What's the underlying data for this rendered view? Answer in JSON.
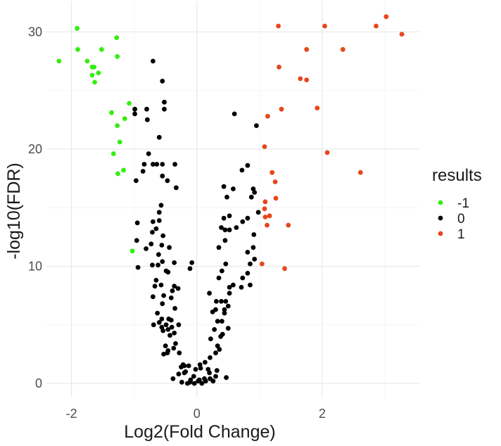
{
  "chart_data": {
    "type": "scatter",
    "xlabel": "Log2(Fold Change)",
    "ylabel": "-log10(FDR)",
    "xlim": [
      -2.4,
      3.55
    ],
    "ylim": [
      -1.2,
      32.6
    ],
    "x_ticks": [
      -2,
      0,
      2
    ],
    "y_ticks": [
      0,
      10,
      20,
      30
    ],
    "grid": true,
    "legend": {
      "title": "results",
      "position": "right",
      "entries": [
        {
          "label": "-1",
          "color": "#33ee11"
        },
        {
          "label": "0",
          "color": "#000000"
        },
        {
          "label": "1",
          "color": "#e8461c"
        }
      ]
    },
    "series": [
      {
        "name": "-1",
        "color": "#33ee11",
        "points": [
          [
            -1.91,
            30.3
          ],
          [
            -1.28,
            29.5
          ],
          [
            -1.9,
            28.5
          ],
          [
            -1.52,
            28.5
          ],
          [
            -1.27,
            27.9
          ],
          [
            -2.2,
            27.5
          ],
          [
            -1.75,
            27.5
          ],
          [
            -1.67,
            27.0
          ],
          [
            -1.64,
            27.0
          ],
          [
            -1.57,
            26.5
          ],
          [
            -1.67,
            26.3
          ],
          [
            -1.63,
            25.7
          ],
          [
            -1.08,
            23.9
          ],
          [
            -1.36,
            23.1
          ],
          [
            -1.15,
            22.6
          ],
          [
            -1.27,
            22.0
          ],
          [
            -1.23,
            20.6
          ],
          [
            -1.33,
            19.6
          ],
          [
            -1.17,
            18.2
          ],
          [
            -1.26,
            17.9
          ],
          [
            -1.03,
            11.3
          ]
        ]
      },
      {
        "name": "0",
        "color": "#000000",
        "points": [
          [
            -0.7,
            27.5
          ],
          [
            -0.55,
            25.8
          ],
          [
            -0.52,
            24.0
          ],
          [
            -0.52,
            23.4
          ],
          [
            -0.99,
            23.4
          ],
          [
            -0.99,
            23.0
          ],
          [
            -0.8,
            23.4
          ],
          [
            -0.79,
            22.5
          ],
          [
            -0.6,
            21.0
          ],
          [
            -0.77,
            19.6
          ],
          [
            -0.84,
            18.7
          ],
          [
            -0.7,
            18.7
          ],
          [
            -0.64,
            18.7
          ],
          [
            -0.55,
            18.7
          ],
          [
            -0.35,
            18.7
          ],
          [
            -0.86,
            18.1
          ],
          [
            -0.55,
            17.7
          ],
          [
            -0.97,
            17.3
          ],
          [
            -0.47,
            17.3
          ],
          [
            -0.33,
            16.7
          ],
          [
            -0.57,
            15.2
          ],
          [
            -0.6,
            14.6
          ],
          [
            -0.7,
            13.8
          ],
          [
            -0.6,
            13.9
          ],
          [
            -0.95,
            13.7
          ],
          [
            -0.65,
            13.2
          ],
          [
            -0.71,
            12.9
          ],
          [
            -0.54,
            12.6
          ],
          [
            -0.96,
            12.2
          ],
          [
            -0.73,
            11.9
          ],
          [
            -0.81,
            11.5
          ],
          [
            -0.56,
            11.8
          ],
          [
            -0.44,
            11.6
          ],
          [
            -0.61,
            11.0
          ],
          [
            -0.55,
            10.4
          ],
          [
            -0.71,
            10.1
          ],
          [
            -0.94,
            9.9
          ],
          [
            -0.62,
            10.1
          ],
          [
            -0.36,
            10.3
          ],
          [
            -0.08,
            10.3
          ],
          [
            -0.11,
            9.8
          ],
          [
            -0.49,
            9.6
          ],
          [
            -0.46,
            9.5
          ],
          [
            -0.65,
            8.8
          ],
          [
            -0.67,
            8.3
          ],
          [
            -0.57,
            8.4
          ],
          [
            -0.36,
            8.3
          ],
          [
            -0.53,
            7.5
          ],
          [
            -0.3,
            8.1
          ],
          [
            -0.39,
            7.9
          ],
          [
            -0.7,
            7.4
          ],
          [
            -0.41,
            7.3
          ],
          [
            -0.55,
            6.8
          ],
          [
            -0.35,
            6.4
          ],
          [
            -0.63,
            6.0
          ],
          [
            -0.41,
            5.4
          ],
          [
            -0.29,
            5.0
          ],
          [
            -0.45,
            5.5
          ],
          [
            -0.56,
            5.5
          ],
          [
            -0.6,
            5.2
          ],
          [
            -0.69,
            5.0
          ],
          [
            -0.4,
            4.8
          ],
          [
            -0.49,
            5.0
          ],
          [
            -0.56,
            4.8
          ],
          [
            -0.46,
            4.6
          ],
          [
            -0.36,
            4.3
          ],
          [
            -0.54,
            4.5
          ],
          [
            -0.43,
            4.1
          ],
          [
            -0.34,
            3.4
          ],
          [
            -0.5,
            3.2
          ],
          [
            -0.37,
            3.0
          ],
          [
            -0.46,
            2.8
          ],
          [
            -0.47,
            2.6
          ],
          [
            -0.53,
            2.5
          ],
          [
            -0.28,
            2.6
          ],
          [
            -0.22,
            1.6
          ],
          [
            -0.25,
            1.4
          ],
          [
            -0.2,
            0.9
          ],
          [
            -0.38,
            0.4
          ],
          [
            -0.24,
            0.1
          ],
          [
            -0.11,
            0.1
          ],
          [
            0.02,
            0.2
          ],
          [
            0.12,
            0.4
          ],
          [
            0.2,
            0.9
          ],
          [
            0.47,
            0.5
          ],
          [
            0.32,
            1.1
          ],
          [
            0.21,
            0.4
          ],
          [
            0.06,
            1.3
          ],
          [
            0.04,
            0.3
          ],
          [
            -0.05,
            0.6
          ],
          [
            -0.18,
            1.0
          ],
          [
            0.26,
            0.2
          ],
          [
            0.3,
            0.6
          ],
          [
            -0.29,
            0.8
          ],
          [
            -0.15,
            0.0
          ],
          [
            -0.04,
            0.0
          ],
          [
            0.14,
            0.2
          ],
          [
            0.08,
            0.0
          ],
          [
            -0.1,
            0.3
          ],
          [
            0.18,
            1.2
          ],
          [
            -0.02,
            1.2
          ],
          [
            -0.13,
            1.5
          ],
          [
            -0.2,
            1.5
          ],
          [
            0.05,
            1.6
          ],
          [
            0.13,
            1.8
          ],
          [
            0.21,
            2.2
          ],
          [
            0.3,
            2.6
          ],
          [
            0.36,
            2.9
          ],
          [
            0.33,
            3.2
          ],
          [
            0.22,
            3.8
          ],
          [
            0.38,
            4.0
          ],
          [
            0.41,
            4.2
          ],
          [
            0.28,
            4.6
          ],
          [
            0.5,
            4.7
          ],
          [
            0.4,
            5.3
          ],
          [
            0.33,
            5.3
          ],
          [
            0.25,
            6.1
          ],
          [
            0.44,
            6.0
          ],
          [
            0.3,
            6.3
          ],
          [
            0.44,
            6.3
          ],
          [
            0.5,
            6.6
          ],
          [
            0.31,
            7.0
          ],
          [
            0.39,
            7.0
          ],
          [
            0.46,
            7.0
          ],
          [
            0.52,
            7.7
          ],
          [
            0.2,
            7.7
          ],
          [
            0.52,
            8.2
          ],
          [
            0.71,
            8.2
          ],
          [
            0.85,
            8.4
          ],
          [
            0.58,
            8.4
          ],
          [
            0.73,
            9.0
          ],
          [
            0.35,
            9.0
          ],
          [
            0.81,
            9.4
          ],
          [
            0.4,
            9.6
          ],
          [
            0.46,
            10.2
          ],
          [
            0.85,
            10.2
          ],
          [
            0.92,
            10.6
          ],
          [
            0.81,
            11.2
          ],
          [
            0.35,
            11.6
          ],
          [
            0.9,
            11.6
          ],
          [
            0.45,
            12.2
          ],
          [
            0.91,
            12.7
          ],
          [
            0.45,
            13.1
          ],
          [
            0.52,
            13.1
          ],
          [
            0.63,
            13.3
          ],
          [
            0.39,
            13.3
          ],
          [
            0.73,
            13.8
          ],
          [
            0.43,
            14.1
          ],
          [
            0.81,
            14.1
          ],
          [
            0.52,
            14.3
          ],
          [
            0.98,
            14.6
          ],
          [
            0.9,
            16.6
          ],
          [
            0.43,
            16.8
          ],
          [
            0.58,
            16.6
          ],
          [
            0.87,
            15.9
          ],
          [
            0.48,
            15.9
          ],
          [
            0.92,
            16.3
          ],
          [
            0.72,
            18.2
          ],
          [
            0.81,
            18.6
          ],
          [
            0.6,
            23.0
          ],
          [
            0.95,
            22.0
          ]
        ]
      },
      {
        "name": "1",
        "color": "#e8461c",
        "points": [
          [
            3.02,
            31.3
          ],
          [
            3.27,
            29.8
          ],
          [
            2.04,
            30.5
          ],
          [
            1.3,
            30.5
          ],
          [
            2.86,
            30.5
          ],
          [
            1.75,
            28.5
          ],
          [
            2.33,
            28.5
          ],
          [
            1.65,
            26.0
          ],
          [
            1.75,
            25.9
          ],
          [
            1.31,
            27.0
          ],
          [
            1.92,
            23.5
          ],
          [
            1.35,
            23.4
          ],
          [
            1.13,
            22.8
          ],
          [
            2.08,
            19.7
          ],
          [
            1.08,
            20.2
          ],
          [
            2.61,
            18.0
          ],
          [
            1.2,
            18.0
          ],
          [
            1.25,
            17.2
          ],
          [
            1.26,
            15.8
          ],
          [
            1.09,
            15.5
          ],
          [
            1.08,
            14.9
          ],
          [
            1.16,
            14.3
          ],
          [
            1.09,
            14.2
          ],
          [
            1.46,
            13.5
          ],
          [
            1.12,
            13.5
          ],
          [
            1.04,
            10.2
          ],
          [
            1.4,
            9.8
          ]
        ]
      }
    ]
  }
}
